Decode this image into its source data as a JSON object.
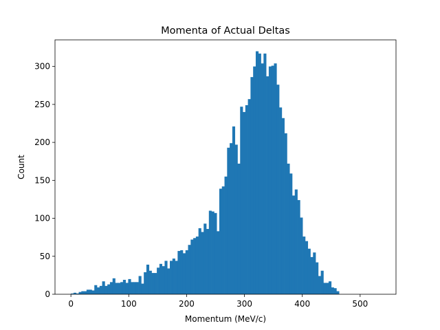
{
  "chart_data": {
    "type": "bar",
    "subtype": "histogram",
    "title": "Momenta of Actual Deltas",
    "xlabel": "Momentum (MeV/c)",
    "ylabel": "Count",
    "xlim": [
      -27.5,
      562
    ],
    "ylim": [
      0,
      335
    ],
    "x_ticks": [
      0,
      100,
      200,
      300,
      400,
      500
    ],
    "y_ticks": [
      0,
      50,
      100,
      150,
      200,
      250,
      300
    ],
    "bin_start": 0,
    "bin_width": 4.5,
    "bar_color": "#1f77b4",
    "grid": false,
    "counts": [
      1,
      2,
      1,
      3,
      4,
      4,
      6,
      6,
      5,
      12,
      9,
      11,
      17,
      11,
      13,
      16,
      21,
      15,
      15,
      16,
      19,
      15,
      20,
      16,
      16,
      16,
      24,
      14,
      29,
      39,
      31,
      28,
      28,
      35,
      40,
      37,
      44,
      34,
      44,
      47,
      44,
      57,
      58,
      54,
      58,
      65,
      72,
      74,
      76,
      87,
      82,
      93,
      86,
      110,
      109,
      107,
      83,
      139,
      142,
      155,
      193,
      199,
      221,
      197,
      172,
      247,
      240,
      249,
      257,
      286,
      300,
      320,
      317,
      304,
      317,
      287,
      300,
      301,
      304,
      276,
      246,
      232,
      212,
      172,
      159,
      130,
      138,
      124,
      101,
      76,
      70,
      60,
      49,
      55,
      42,
      24,
      31,
      15,
      15,
      17,
      9,
      8,
      4
    ]
  }
}
